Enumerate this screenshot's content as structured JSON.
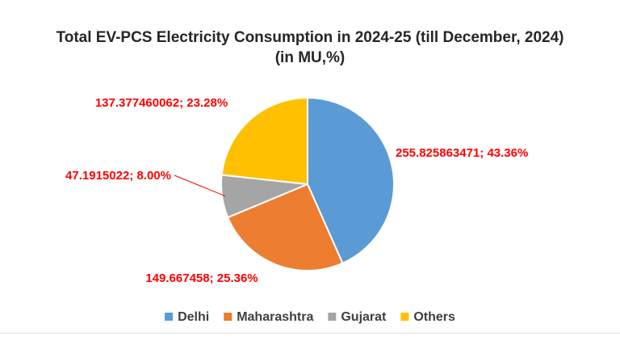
{
  "chart_data": {
    "type": "pie",
    "title": "Total EV-PCS Electricity Consumption in 2024-25 (till December, 2024)",
    "subtitle": "(in MU,%)",
    "series": [
      {
        "name": "Delhi",
        "value": 255.825863471,
        "percent": 43.36,
        "color": "#5b9bd5",
        "label": "255.825863471; 43.36%"
      },
      {
        "name": "Maharashtra",
        "value": 149.667458,
        "percent": 25.36,
        "color": "#ed7d31",
        "label": "149.667458; 25.36%"
      },
      {
        "name": "Gujarat",
        "value": 47.1915022,
        "percent": 8.0,
        "color": "#a5a5a5",
        "label": "47.1915022; 8.00%"
      },
      {
        "name": "Others",
        "value": 137.377460062,
        "percent": 23.28,
        "color": "#ffc000",
        "label": "137.377460062; 23.28%"
      }
    ],
    "legend_position": "bottom",
    "label_color": "#ff0000"
  }
}
